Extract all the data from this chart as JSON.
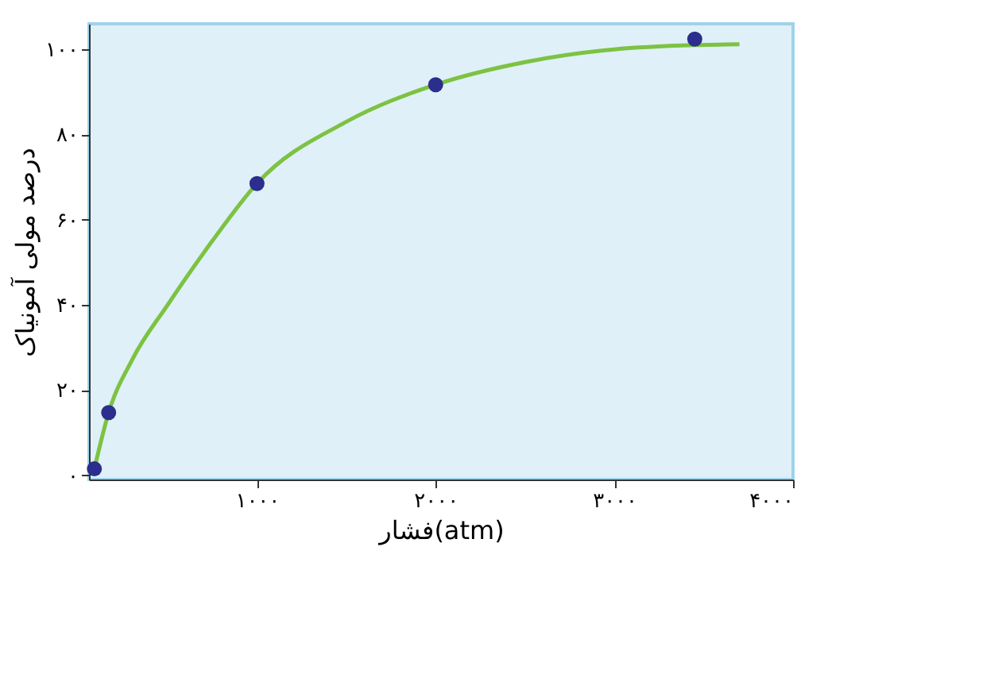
{
  "chart_data": {
    "type": "line",
    "xlabel": "فشار(atm)",
    "ylabel": "درصد مولی آمونیاک",
    "xlim": [
      60,
      4000
    ],
    "ylim": [
      -1,
      106
    ],
    "xticks": [
      {
        "value": 1000,
        "label": "۱۰۰۰"
      },
      {
        "value": 2000,
        "label": "۲۰۰۰"
      },
      {
        "value": 3000,
        "label": "۳۰۰۰"
      },
      {
        "value": 4000,
        "label": "۴۰۰۰"
      }
    ],
    "yticks": [
      {
        "value": 0,
        "label": "۰"
      },
      {
        "value": 20,
        "label": "۲۰"
      },
      {
        "value": 40,
        "label": "۴۰"
      },
      {
        "value": 60,
        "label": "۶۰"
      },
      {
        "value": 80,
        "label": "۸۰"
      },
      {
        "value": 100,
        "label": "۱۰۰"
      }
    ],
    "grid": false,
    "series": [
      {
        "color": "#7dc242",
        "line_style": "solid",
        "x": [
          90,
          170,
          300,
          500,
          750,
          1000,
          1500,
          2000,
          2500,
          3000,
          3450,
          3700
        ],
        "values": [
          1.5,
          14.7,
          27,
          40,
          55,
          68.5,
          83,
          91.7,
          97,
          100,
          101,
          101.2
        ]
      },
      {
        "type": "scatter",
        "color": "#2b2e8c",
        "marker": "circle",
        "x": [
          90,
          170,
          1000,
          2000,
          3450
        ],
        "values": [
          1.5,
          14.7,
          68.5,
          91.7,
          102.4
        ]
      }
    ]
  }
}
